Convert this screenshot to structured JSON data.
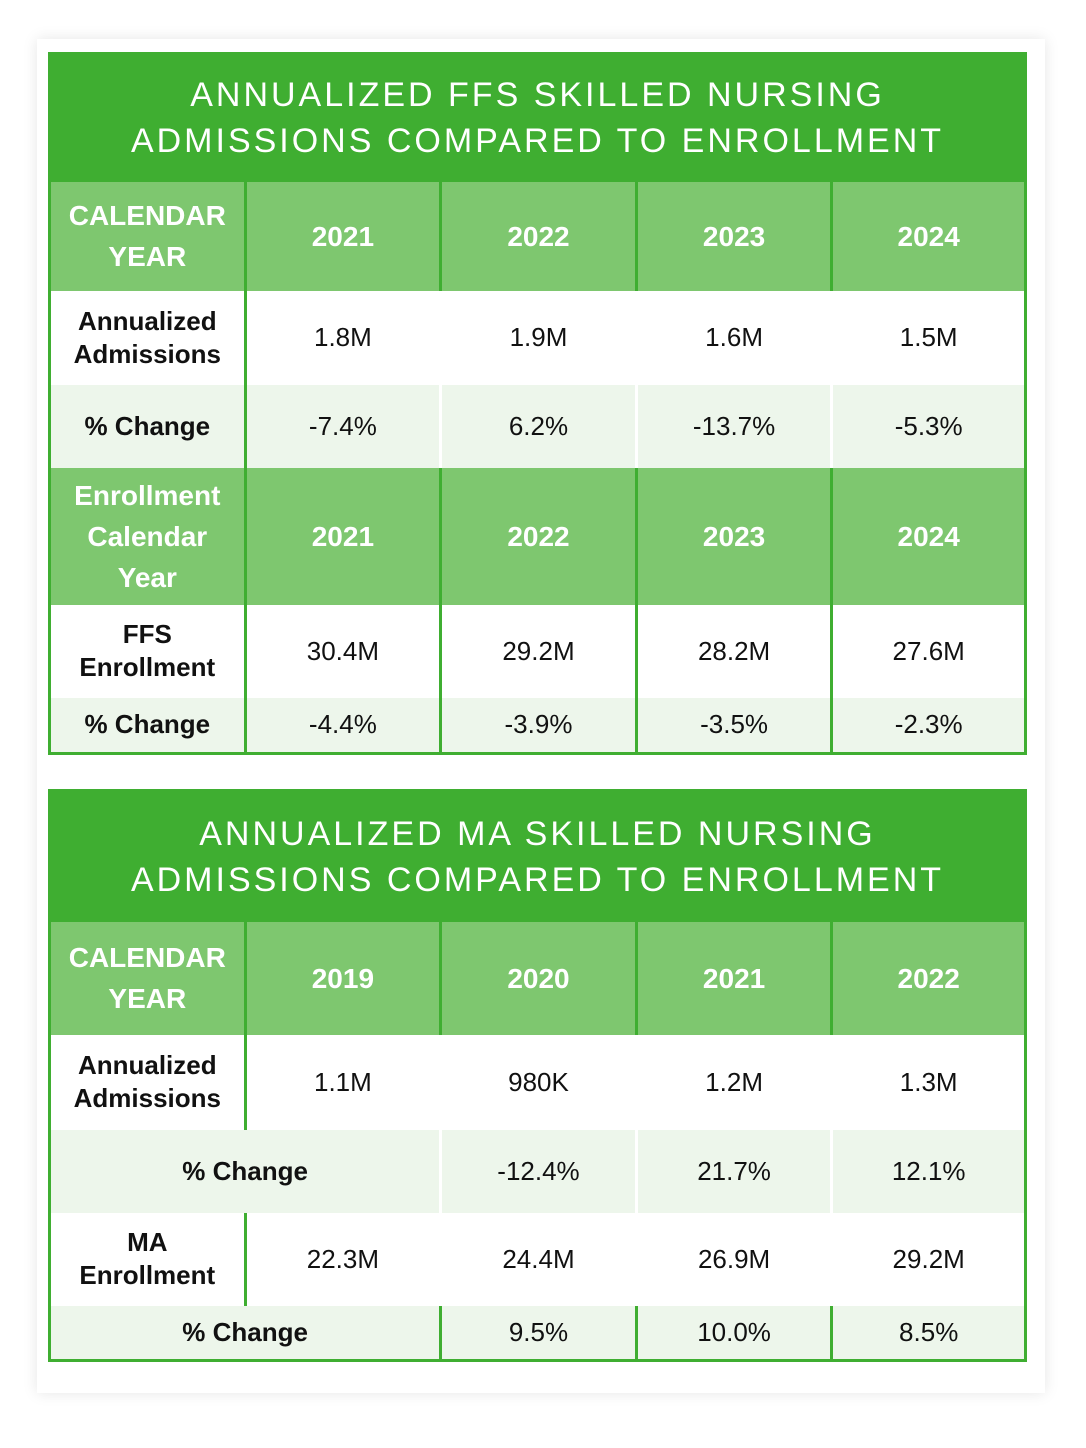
{
  "ffs_table": {
    "title_line1": "ANNUALIZED FFS SKILLED NURSING",
    "title_line2": "ADMISSIONS COMPARED TO ENROLLMENT",
    "header1": {
      "label_line1": "CALENDAR",
      "label_line2": "YEAR",
      "years": [
        "2021",
        "2022",
        "2023",
        "2024"
      ]
    },
    "admissions": {
      "label_line1": "Annualized",
      "label_line2": "Admissions",
      "values": [
        "1.8M",
        "1.9M",
        "1.6M",
        "1.5M"
      ]
    },
    "admissions_change": {
      "label": "% Change",
      "values": [
        "-7.4%",
        "6.2%",
        "-13.7%",
        "-5.3%"
      ]
    },
    "header2": {
      "label_line1": "Enrollment",
      "label_line2": "Calendar",
      "label_line3": "Year",
      "years": [
        "2021",
        "2022",
        "2023",
        "2024"
      ]
    },
    "enrollment": {
      "label_line1": "FFS",
      "label_line2": "Enrollment",
      "values": [
        "30.4M",
        "29.2M",
        "28.2M",
        "27.6M"
      ]
    },
    "enrollment_change": {
      "label": "% Change",
      "values": [
        "-4.4%",
        "-3.9%",
        "-3.5%",
        "-2.3%"
      ]
    }
  },
  "ma_table": {
    "title_line1": "ANNUALIZED MA SKILLED NURSING",
    "title_line2": "ADMISSIONS COMPARED TO ENROLLMENT",
    "header1": {
      "label_line1": "CALENDAR",
      "label_line2": "YEAR",
      "years": [
        "2019",
        "2020",
        "2021",
        "2022"
      ]
    },
    "admissions": {
      "label_line1": "Annualized",
      "label_line2": "Admissions",
      "values": [
        "1.1M",
        "980K",
        "1.2M",
        "1.3M"
      ]
    },
    "admissions_change": {
      "label": "% Change",
      "values": [
        "-12.4%",
        "21.7%",
        "12.1%"
      ]
    },
    "enrollment": {
      "label_line1": "MA",
      "label_line2": "Enrollment",
      "values": [
        "22.3M",
        "24.4M",
        "26.9M",
        "29.2M"
      ]
    },
    "enrollment_change": {
      "label": "% Change",
      "values": [
        "9.5%",
        "10.0%",
        "8.5%"
      ]
    }
  },
  "colors": {
    "primary_green": "#3fae31",
    "header_green": "#7ec76f",
    "row_tint": "#edf6eb"
  }
}
